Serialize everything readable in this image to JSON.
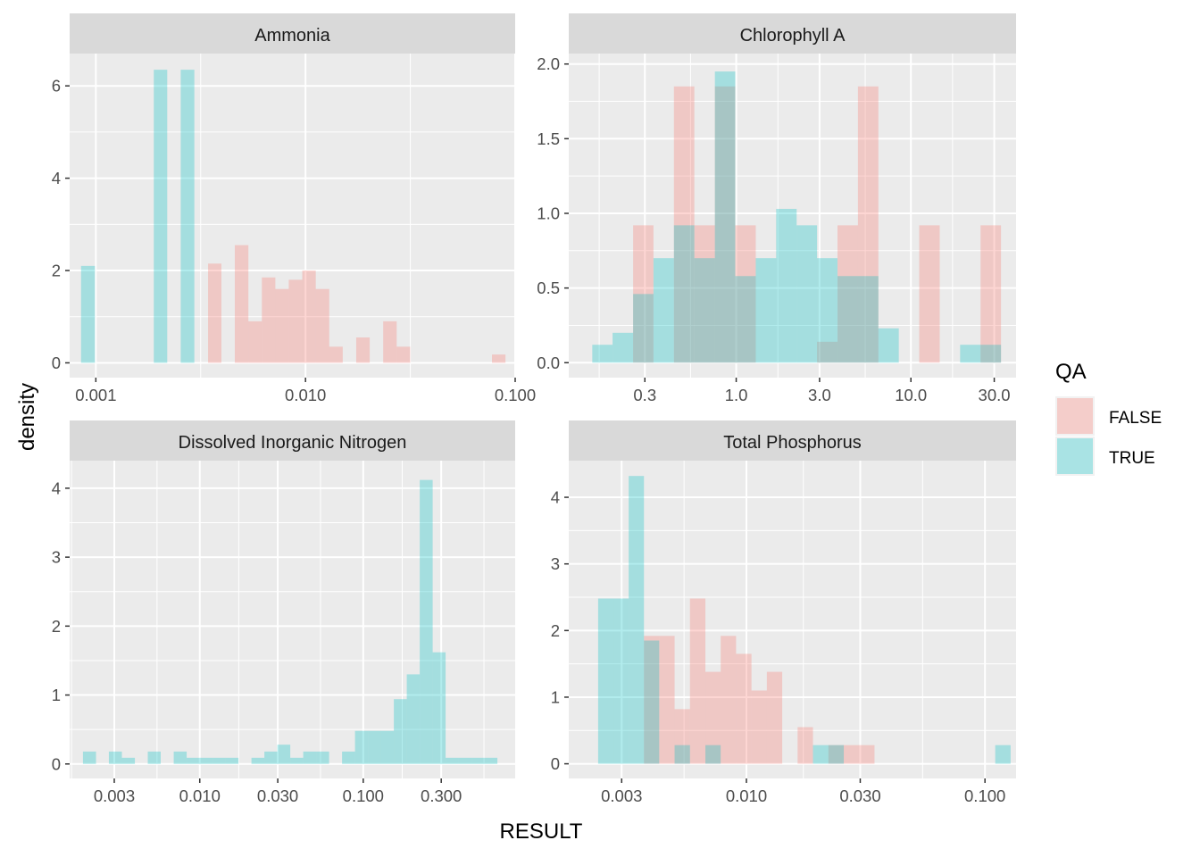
{
  "chart_data": {
    "type": "histogram",
    "facet_layout": "2x2",
    "x_scale": "log10",
    "xlabel": "RESULT",
    "ylabel": "density",
    "grid": true,
    "legend": {
      "title": "QA",
      "placement": "right",
      "entries": [
        {
          "label": "FALSE",
          "color": "#F8766D"
        },
        {
          "label": "TRUE",
          "color": "#00BFC4"
        }
      ]
    },
    "bar_opacity": 0.3,
    "panels": [
      {
        "title": "Ammonia",
        "xlim": [
          0.00075,
          0.1
        ],
        "ylim": [
          -0.32,
          6.7
        ],
        "x_ticks": [
          0.001,
          0.01,
          0.1
        ],
        "x_tick_labels": [
          "0.001",
          "0.010",
          "0.100"
        ],
        "y_ticks": [
          0,
          2,
          4,
          6
        ],
        "y_tick_labels": [
          "0",
          "2",
          "4",
          "6"
        ],
        "series": [
          {
            "name": "TRUE",
            "bins": [
              {
                "x0": 0.00085,
                "x1": 0.00099,
                "density": 2.1
              },
              {
                "x0": 0.00189,
                "x1": 0.00219,
                "density": 6.35
              },
              {
                "x0": 0.00254,
                "x1": 0.00295,
                "density": 6.35
              }
            ]
          },
          {
            "name": "FALSE",
            "bins": [
              {
                "x0": 0.00343,
                "x1": 0.00397,
                "density": 2.15
              },
              {
                "x0": 0.0046,
                "x1": 0.00534,
                "density": 2.55
              },
              {
                "x0": 0.00534,
                "x1": 0.00619,
                "density": 0.9
              },
              {
                "x0": 0.00619,
                "x1": 0.00718,
                "density": 1.85
              },
              {
                "x0": 0.00718,
                "x1": 0.00832,
                "density": 1.6
              },
              {
                "x0": 0.00832,
                "x1": 0.00965,
                "density": 1.8
              },
              {
                "x0": 0.00965,
                "x1": 0.01119,
                "density": 2.0
              },
              {
                "x0": 0.01119,
                "x1": 0.01298,
                "density": 1.6
              },
              {
                "x0": 0.01298,
                "x1": 0.01505,
                "density": 0.35
              },
              {
                "x0": 0.01745,
                "x1": 0.02024,
                "density": 0.55
              },
              {
                "x0": 0.02347,
                "x1": 0.02722,
                "density": 0.9
              },
              {
                "x0": 0.02722,
                "x1": 0.03157,
                "density": 0.35
              },
              {
                "x0": 0.0775,
                "x1": 0.0899,
                "density": 0.18
              }
            ]
          }
        ]
      },
      {
        "title": "Chlorophyll A",
        "xlim": [
          0.11,
          40
        ],
        "ylim": [
          -0.1,
          2.07
        ],
        "x_ticks": [
          0.3,
          1,
          3,
          10,
          30
        ],
        "x_tick_labels": [
          "0.3",
          "1.0",
          "3.0",
          "10.0",
          "30.0"
        ],
        "y_ticks": [
          0,
          0.5,
          1,
          1.5,
          2
        ],
        "y_tick_labels": [
          "0.0",
          "0.5",
          "1.0",
          "1.5",
          "2.0"
        ],
        "series": [
          {
            "name": "FALSE",
            "bins": [
              {
                "x0": 0.257,
                "x1": 0.336,
                "density": 0.92
              },
              {
                "x0": 0.44,
                "x1": 0.576,
                "density": 1.85
              },
              {
                "x0": 0.576,
                "x1": 0.755,
                "density": 0.92
              },
              {
                "x0": 0.755,
                "x1": 0.988,
                "density": 1.85
              },
              {
                "x0": 0.988,
                "x1": 1.294,
                "density": 0.92
              },
              {
                "x0": 2.903,
                "x1": 3.8,
                "density": 0.14
              },
              {
                "x0": 3.8,
                "x1": 4.975,
                "density": 0.92
              },
              {
                "x0": 4.975,
                "x1": 6.513,
                "density": 1.85
              },
              {
                "x0": 11.16,
                "x1": 14.62,
                "density": 0.92
              },
              {
                "x0": 25.05,
                "x1": 32.8,
                "density": 0.92
              }
            ]
          },
          {
            "name": "TRUE",
            "bins": [
              {
                "x0": 0.15,
                "x1": 0.196,
                "density": 0.12
              },
              {
                "x0": 0.196,
                "x1": 0.257,
                "density": 0.2
              },
              {
                "x0": 0.257,
                "x1": 0.336,
                "density": 0.46
              },
              {
                "x0": 0.336,
                "x1": 0.44,
                "density": 0.7
              },
              {
                "x0": 0.44,
                "x1": 0.576,
                "density": 0.92
              },
              {
                "x0": 0.576,
                "x1": 0.755,
                "density": 0.7
              },
              {
                "x0": 0.755,
                "x1": 0.988,
                "density": 1.95
              },
              {
                "x0": 0.988,
                "x1": 1.294,
                "density": 0.58
              },
              {
                "x0": 1.294,
                "x1": 1.694,
                "density": 0.7
              },
              {
                "x0": 1.694,
                "x1": 2.218,
                "density": 1.03
              },
              {
                "x0": 2.218,
                "x1": 2.903,
                "density": 0.92
              },
              {
                "x0": 2.903,
                "x1": 3.8,
                "density": 0.7
              },
              {
                "x0": 3.8,
                "x1": 4.975,
                "density": 0.58
              },
              {
                "x0": 4.975,
                "x1": 6.513,
                "density": 0.58
              },
              {
                "x0": 6.513,
                "x1": 8.527,
                "density": 0.23
              },
              {
                "x0": 19.13,
                "x1": 25.05,
                "density": 0.12
              },
              {
                "x0": 25.05,
                "x1": 32.8,
                "density": 0.12
              }
            ]
          }
        ]
      },
      {
        "title": "Dissolved Inorganic Nitrogen",
        "xlim": [
          0.0016,
          0.85
        ],
        "ylim": [
          -0.21,
          4.4
        ],
        "x_ticks": [
          0.003,
          0.01,
          0.03,
          0.1,
          0.3
        ],
        "x_tick_labels": [
          "0.003",
          "0.010",
          "0.030",
          "0.100",
          "0.300"
        ],
        "y_ticks": [
          0,
          1,
          2,
          3,
          4
        ],
        "y_tick_labels": [
          "0",
          "1",
          "2",
          "3",
          "4"
        ],
        "series": [
          {
            "name": "TRUE",
            "bins": [
              {
                "x0": 0.00193,
                "x1": 0.00232,
                "density": 0.18
              },
              {
                "x0": 0.00278,
                "x1": 0.00334,
                "density": 0.18
              },
              {
                "x0": 0.00334,
                "x1": 0.00401,
                "density": 0.09
              },
              {
                "x0": 0.00481,
                "x1": 0.00577,
                "density": 0.18
              },
              {
                "x0": 0.00693,
                "x1": 0.00832,
                "density": 0.18
              },
              {
                "x0": 0.00832,
                "x1": 0.00998,
                "density": 0.09
              },
              {
                "x0": 0.00998,
                "x1": 0.01198,
                "density": 0.09
              },
              {
                "x0": 0.01198,
                "x1": 0.01438,
                "density": 0.09
              },
              {
                "x0": 0.01438,
                "x1": 0.01725,
                "density": 0.09
              },
              {
                "x0": 0.02071,
                "x1": 0.02485,
                "density": 0.09
              },
              {
                "x0": 0.02485,
                "x1": 0.02982,
                "density": 0.18
              },
              {
                "x0": 0.02982,
                "x1": 0.03578,
                "density": 0.28
              },
              {
                "x0": 0.03578,
                "x1": 0.04294,
                "density": 0.09
              },
              {
                "x0": 0.04294,
                "x1": 0.05153,
                "density": 0.18
              },
              {
                "x0": 0.05153,
                "x1": 0.06184,
                "density": 0.18
              },
              {
                "x0": 0.07421,
                "x1": 0.08905,
                "density": 0.18
              },
              {
                "x0": 0.08905,
                "x1": 0.10686,
                "density": 0.48
              },
              {
                "x0": 0.10686,
                "x1": 0.12823,
                "density": 0.48
              },
              {
                "x0": 0.12823,
                "x1": 0.15388,
                "density": 0.48
              },
              {
                "x0": 0.15388,
                "x1": 0.18466,
                "density": 0.94
              },
              {
                "x0": 0.18466,
                "x1": 0.22159,
                "density": 1.3
              },
              {
                "x0": 0.22159,
                "x1": 0.26591,
                "density": 4.12
              },
              {
                "x0": 0.26591,
                "x1": 0.31909,
                "density": 1.62
              },
              {
                "x0": 0.31909,
                "x1": 0.38291,
                "density": 0.09
              },
              {
                "x0": 0.38291,
                "x1": 0.45949,
                "density": 0.09
              },
              {
                "x0": 0.45949,
                "x1": 0.55139,
                "density": 0.09
              },
              {
                "x0": 0.55139,
                "x1": 0.66167,
                "density": 0.09
              }
            ]
          }
        ]
      },
      {
        "title": "Total Phosphorus",
        "xlim": [
          0.0018,
          0.135
        ],
        "ylim": [
          -0.22,
          4.55
        ],
        "x_ticks": [
          0.003,
          0.01,
          0.03,
          0.1
        ],
        "x_tick_labels": [
          "0.003",
          "0.010",
          "0.030",
          "0.100"
        ],
        "y_ticks": [
          0,
          1,
          2,
          3,
          4
        ],
        "y_tick_labels": [
          "0",
          "1",
          "2",
          "3",
          "4"
        ],
        "series": [
          {
            "name": "FALSE",
            "bins": [
              {
                "x0": 0.00372,
                "x1": 0.00431,
                "density": 1.92
              },
              {
                "x0": 0.00431,
                "x1": 0.005,
                "density": 1.92
              },
              {
                "x0": 0.005,
                "x1": 0.0058,
                "density": 0.82
              },
              {
                "x0": 0.0058,
                "x1": 0.00673,
                "density": 2.48
              },
              {
                "x0": 0.00673,
                "x1": 0.0078,
                "density": 1.38
              },
              {
                "x0": 0.0078,
                "x1": 0.00905,
                "density": 1.92
              },
              {
                "x0": 0.00905,
                "x1": 0.0105,
                "density": 1.65
              },
              {
                "x0": 0.0105,
                "x1": 0.01218,
                "density": 1.1
              },
              {
                "x0": 0.01218,
                "x1": 0.01413,
                "density": 1.38
              },
              {
                "x0": 0.01639,
                "x1": 0.01901,
                "density": 0.55
              },
              {
                "x0": 0.02206,
                "x1": 0.02559,
                "density": 0.28
              },
              {
                "x0": 0.02559,
                "x1": 0.02968,
                "density": 0.28
              },
              {
                "x0": 0.02968,
                "x1": 0.03443,
                "density": 0.28
              }
            ]
          },
          {
            "name": "TRUE",
            "bins": [
              {
                "x0": 0.00239,
                "x1": 0.00277,
                "density": 2.48
              },
              {
                "x0": 0.00277,
                "x1": 0.00321,
                "density": 2.48
              },
              {
                "x0": 0.00321,
                "x1": 0.00372,
                "density": 4.32
              },
              {
                "x0": 0.00372,
                "x1": 0.00431,
                "density": 1.85
              },
              {
                "x0": 0.005,
                "x1": 0.0058,
                "density": 0.28
              },
              {
                "x0": 0.00673,
                "x1": 0.0078,
                "density": 0.28
              },
              {
                "x0": 0.01901,
                "x1": 0.02206,
                "density": 0.28
              },
              {
                "x0": 0.02206,
                "x1": 0.02559,
                "density": 0.28
              },
              {
                "x0": 0.1104,
                "x1": 0.12806,
                "density": 0.28
              }
            ]
          }
        ]
      }
    ]
  }
}
